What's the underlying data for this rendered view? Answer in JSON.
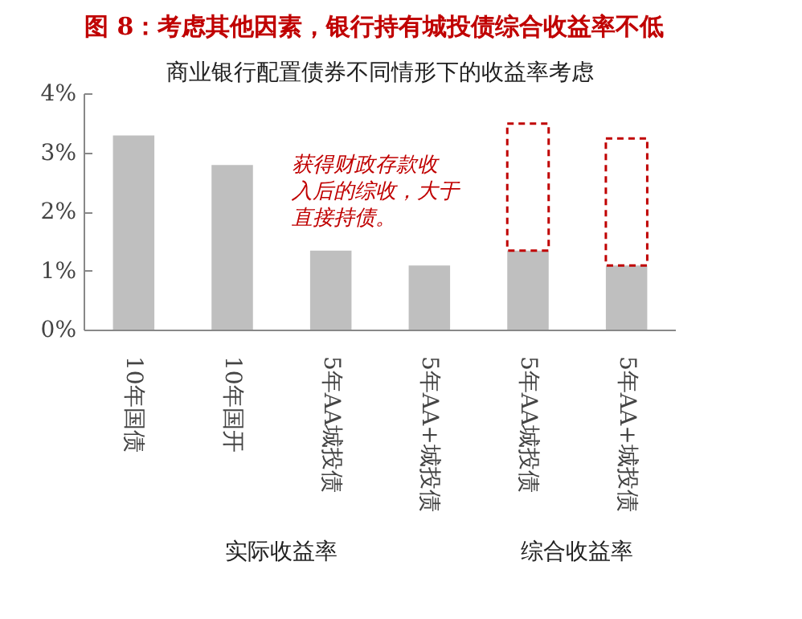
{
  "chart_data": {
    "type": "bar",
    "title": "图 8：考虑其他因素，银行持有城投债综合收益率不低",
    "subtitle": "商业银行配置债券不同情形下的收益率考虑",
    "categories": [
      "10年国债",
      "10年国开",
      "5年AA城投债",
      "5年AA+城投债",
      "5年AA城投债",
      "5年AA+城投债"
    ],
    "series": [
      {
        "color": "#bfbfbf",
        "values": [
          3.3,
          2.8,
          1.35,
          1.1,
          1.35,
          1.1
        ]
      },
      {
        "color": "#c00000",
        "values": [
          null,
          null,
          null,
          null,
          2.15,
          2.15
        ],
        "line_style": "dashed"
      }
    ],
    "stacked": true,
    "ylim": [
      0,
      4
    ],
    "yticks": [
      {
        "value": 0,
        "label": "0%"
      },
      {
        "value": 1,
        "label": "1%"
      },
      {
        "value": 2,
        "label": "2%"
      },
      {
        "value": 3,
        "label": "3%"
      },
      {
        "value": 4,
        "label": "4%"
      }
    ],
    "grid": false,
    "annotations": [
      "获得财政存款收",
      "入后的综收，大于",
      "直接持债。",
      "实际收益率",
      "综合收益率"
    ]
  }
}
